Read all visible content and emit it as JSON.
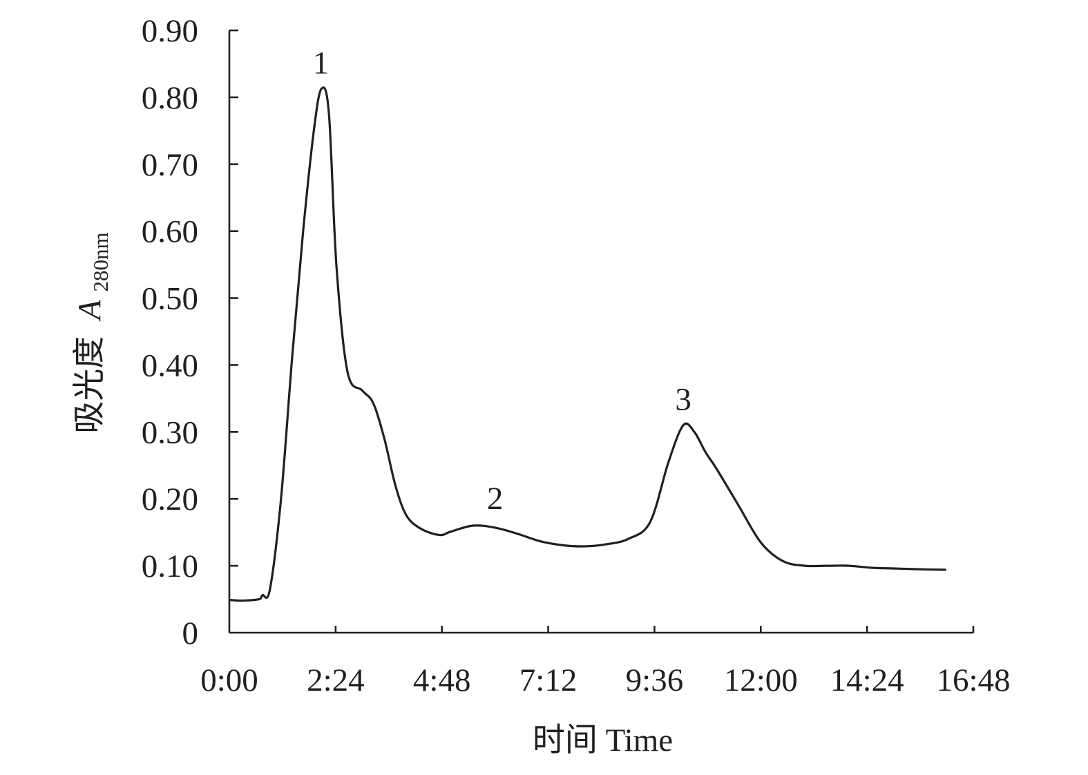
{
  "chart_data": {
    "type": "line",
    "xlabel": "时间 Time",
    "ylabel": "吸光度",
    "ylabel_var": "A",
    "ylabel_sub": "280nm",
    "xlim": [
      "0:00",
      "16:48"
    ],
    "ylim": [
      0,
      0.9
    ],
    "x_tick_labels": [
      "0:00",
      "2:24",
      "4:48",
      "7:12",
      "9:36",
      "12:00",
      "14:24",
      "16:48"
    ],
    "y_tick_labels": [
      "0",
      "0.10",
      "0.20",
      "0.30",
      "0.40",
      "0.50",
      "0.60",
      "0.70",
      "0.80",
      "0.90"
    ],
    "grid": false,
    "legend": "none",
    "series": [
      {
        "x": [
          "0:00",
          "0:18",
          "0:40",
          "0:45",
          "0:55",
          "1:10",
          "1:25",
          "1:40",
          "1:55",
          "2:05",
          "2:15",
          "2:25",
          "2:40",
          "3:00",
          "3:15",
          "3:30",
          "3:45",
          "4:00",
          "4:20",
          "4:45",
          "5:00",
          "5:30",
          "6:00",
          "6:30",
          "7:00",
          "7:30",
          "8:00",
          "8:30",
          "9:00",
          "9:30",
          "9:55",
          "10:15",
          "10:30",
          "10:45",
          "11:00",
          "11:30",
          "12:00",
          "12:30",
          "13:00",
          "13:30",
          "14:00",
          "14:30",
          "15:00",
          "15:30",
          "16:10"
        ],
        "y": [
          0.049,
          0.048,
          0.05,
          0.056,
          0.065,
          0.2,
          0.41,
          0.6,
          0.755,
          0.813,
          0.775,
          0.55,
          0.39,
          0.362,
          0.343,
          0.29,
          0.22,
          0.175,
          0.155,
          0.146,
          0.151,
          0.16,
          0.157,
          0.148,
          0.137,
          0.131,
          0.129,
          0.132,
          0.14,
          0.165,
          0.255,
          0.31,
          0.3,
          0.27,
          0.245,
          0.19,
          0.135,
          0.107,
          0.1,
          0.1,
          0.1,
          0.097,
          0.096,
          0.095,
          0.094
        ]
      }
    ],
    "annotations": [
      {
        "text": "1",
        "x": "2:04",
        "y": 0.813
      },
      {
        "text": "2",
        "x": "6:00",
        "y": 0.162
      },
      {
        "text": "3",
        "x": "10:15",
        "y": 0.31
      }
    ]
  }
}
